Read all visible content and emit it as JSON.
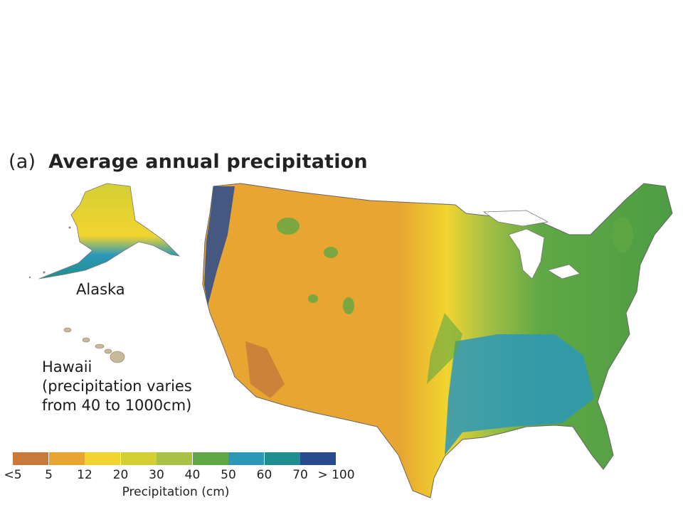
{
  "title": {
    "panel_label": "(a)",
    "text": "Average annual precipitation"
  },
  "regions": {
    "alaska_label": "Alaska",
    "hawaii_label": "Hawaii",
    "hawaii_note_line1": "(precipitation varies",
    "hawaii_note_line2": "from 40 to 1000cm)"
  },
  "legend": {
    "title": "Precipitation (cm)",
    "bins": [
      {
        "color": "#c97a3a"
      },
      {
        "color": "#e8a531"
      },
      {
        "color": "#f1d42f"
      },
      {
        "color": "#d4cf34"
      },
      {
        "color": "#a9c144"
      },
      {
        "color": "#5fa845"
      },
      {
        "color": "#2b98b8"
      },
      {
        "color": "#1f8e8e"
      },
      {
        "color": "#284a8f"
      }
    ],
    "tick_labels": [
      "<5",
      "5",
      "12",
      "20",
      "30",
      "40",
      "50",
      "60",
      "70",
      "> 100"
    ]
  }
}
